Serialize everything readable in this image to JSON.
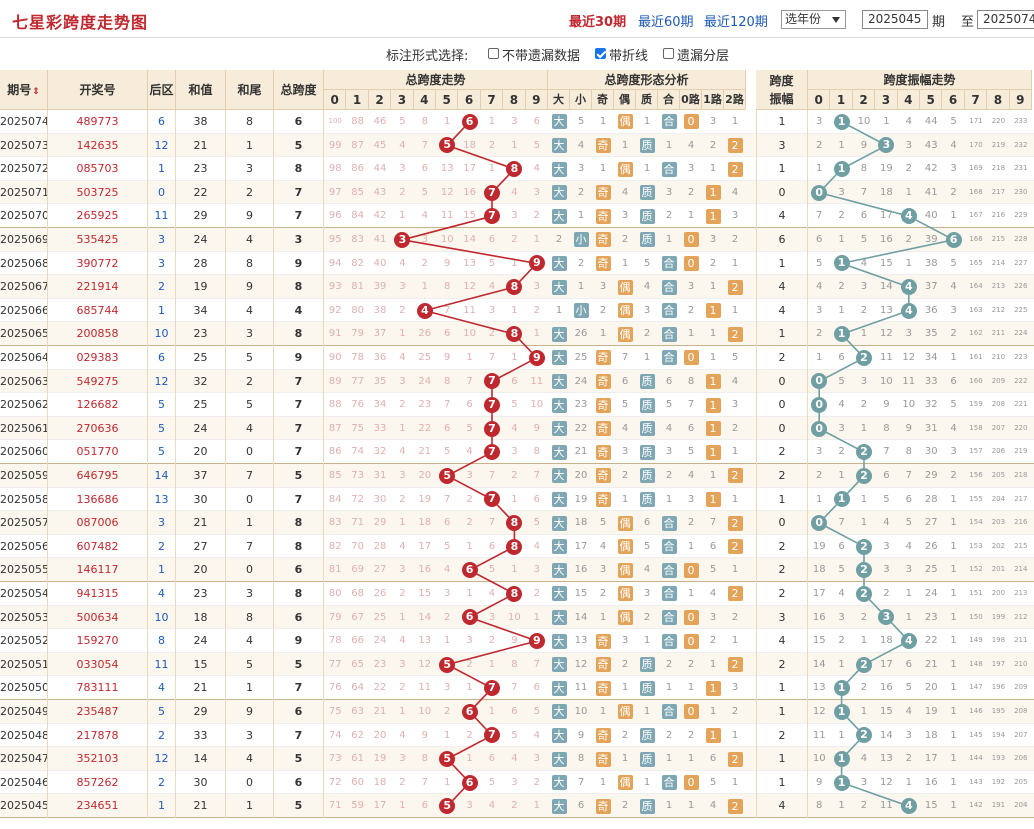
{
  "header": {
    "title": "七星彩跨度走势图",
    "nav": [
      "最近30期",
      "最近60期",
      "最近120期"
    ],
    "year_select": "选年份",
    "from_issue": "2025045",
    "period_label": "期",
    "to_label": "至",
    "to_issue": "2025074"
  },
  "options": {
    "label": "标注形式选择:",
    "items": [
      {
        "label": "不带遗漏数据",
        "checked": false
      },
      {
        "label": "带折线",
        "checked": true
      },
      {
        "label": "遗漏分层",
        "checked": false
      }
    ]
  },
  "columns": {
    "issue": "期号",
    "draw": "开奖号",
    "back": "后区",
    "sum": "和值",
    "tail": "和尾",
    "span": "总跨度",
    "span_trend": "总跨度走势",
    "form": "总跨度形态分析",
    "amp": "跨度振幅",
    "amp_trend": "跨度振幅走势",
    "digits": [
      "0",
      "1",
      "2",
      "3",
      "4",
      "5",
      "6",
      "7",
      "8",
      "9"
    ],
    "form_sub": [
      "大",
      "小",
      "奇",
      "偶",
      "质",
      "合",
      "0路",
      "1路",
      "2路"
    ],
    "sort_icon": "sort-arrows-icon"
  },
  "colors": {
    "header_bg": "#f7ecd9",
    "red_ball": "#c0282f",
    "teal_ball": "#6f9fa3",
    "big": "#7ea7b3",
    "odd": "#e3a45a",
    "prime": "#7ea7b3",
    "route": "#e3a45a"
  },
  "rows": [
    {
      "issue": "2025074",
      "draw": "489773",
      "back": "6",
      "sum": "38",
      "tail": "8",
      "span": "6",
      "amp": "1",
      "form": [
        "大",
        "5",
        "1",
        "偶",
        "1",
        "合",
        "0",
        "3",
        "1"
      ],
      "miss": [
        "100",
        "88",
        "46",
        "5",
        "8",
        "1",
        "",
        "1",
        "3",
        "6"
      ],
      "amiss": [
        "3",
        "",
        "10",
        "1",
        "4",
        "44",
        "5",
        "171",
        "220",
        "233"
      ]
    },
    {
      "issue": "2025073",
      "draw": "142635",
      "back": "12",
      "sum": "21",
      "tail": "1",
      "span": "5",
      "amp": "3",
      "form": [
        "大",
        "4",
        "奇",
        "1",
        "质",
        "1",
        "4",
        "2",
        "2"
      ],
      "miss": [
        "99",
        "87",
        "45",
        "4",
        "7",
        "",
        "18",
        "2",
        "1",
        "5"
      ],
      "amiss": [
        "2",
        "1",
        "9",
        "",
        "3",
        "43",
        "4",
        "170",
        "219",
        "232"
      ]
    },
    {
      "issue": "2025072",
      "draw": "085703",
      "back": "1",
      "sum": "23",
      "tail": "3",
      "span": "8",
      "amp": "1",
      "form": [
        "大",
        "3",
        "1",
        "偶",
        "1",
        "合",
        "3",
        "1",
        "2"
      ],
      "miss": [
        "98",
        "86",
        "44",
        "3",
        "6",
        "13",
        "17",
        "1",
        "",
        "4"
      ],
      "amiss": [
        "1",
        "",
        "8",
        "19",
        "2",
        "42",
        "3",
        "169",
        "218",
        "231"
      ]
    },
    {
      "issue": "2025071",
      "draw": "503725",
      "back": "0",
      "sum": "22",
      "tail": "2",
      "span": "7",
      "amp": "0",
      "form": [
        "大",
        "2",
        "奇",
        "4",
        "质",
        "3",
        "2",
        "1",
        "4"
      ],
      "miss": [
        "97",
        "85",
        "43",
        "2",
        "5",
        "12",
        "16",
        "",
        "4",
        "3"
      ],
      "amiss": [
        "",
        "3",
        "7",
        "18",
        "1",
        "41",
        "2",
        "168",
        "217",
        "230"
      ]
    },
    {
      "issue": "2025070",
      "draw": "265925",
      "back": "11",
      "sum": "29",
      "tail": "9",
      "span": "7",
      "amp": "4",
      "form": [
        "大",
        "1",
        "奇",
        "3",
        "质",
        "2",
        "1",
        "1",
        "3"
      ],
      "miss": [
        "96",
        "84",
        "42",
        "1",
        "4",
        "11",
        "15",
        "",
        "3",
        "2"
      ],
      "amiss": [
        "7",
        "2",
        "6",
        "17",
        "",
        "40",
        "1",
        "167",
        "216",
        "229"
      ]
    },
    {
      "issue": "2025069",
      "draw": "535425",
      "back": "3",
      "sum": "24",
      "tail": "4",
      "span": "3",
      "amp": "6",
      "form": [
        "2",
        "小",
        "奇",
        "2",
        "质",
        "1",
        "0",
        "3",
        "2"
      ],
      "miss": [
        "95",
        "83",
        "41",
        "",
        "3",
        "10",
        "14",
        "6",
        "2",
        "1"
      ],
      "amiss": [
        "6",
        "1",
        "5",
        "16",
        "2",
        "39",
        "",
        "166",
        "215",
        "228"
      ]
    },
    {
      "issue": "2025068",
      "draw": "390772",
      "back": "3",
      "sum": "28",
      "tail": "8",
      "span": "9",
      "amp": "1",
      "form": [
        "大",
        "2",
        "奇",
        "1",
        "5",
        "合",
        "0",
        "2",
        "1"
      ],
      "miss": [
        "94",
        "82",
        "40",
        "4",
        "2",
        "9",
        "13",
        "5",
        "1",
        ""
      ],
      "amiss": [
        "5",
        "",
        "4",
        "15",
        "1",
        "38",
        "5",
        "165",
        "214",
        "227"
      ]
    },
    {
      "issue": "2025067",
      "draw": "221914",
      "back": "2",
      "sum": "19",
      "tail": "9",
      "span": "8",
      "amp": "4",
      "form": [
        "大",
        "1",
        "3",
        "偶",
        "4",
        "合",
        "3",
        "1",
        "2"
      ],
      "miss": [
        "93",
        "81",
        "39",
        "3",
        "1",
        "8",
        "12",
        "4",
        "",
        "3"
      ],
      "amiss": [
        "4",
        "2",
        "3",
        "14",
        "",
        "37",
        "4",
        "164",
        "213",
        "226"
      ]
    },
    {
      "issue": "2025066",
      "draw": "685744",
      "back": "1",
      "sum": "34",
      "tail": "4",
      "span": "4",
      "amp": "4",
      "form": [
        "1",
        "小",
        "2",
        "偶",
        "3",
        "合",
        "2",
        "1",
        "1"
      ],
      "miss": [
        "92",
        "80",
        "38",
        "2",
        "",
        "7",
        "11",
        "3",
        "1",
        "2"
      ],
      "amiss": [
        "3",
        "1",
        "2",
        "13",
        "",
        "36",
        "3",
        "163",
        "212",
        "225"
      ]
    },
    {
      "issue": "2025065",
      "draw": "200858",
      "back": "10",
      "sum": "23",
      "tail": "3",
      "span": "8",
      "amp": "1",
      "form": [
        "大",
        "26",
        "1",
        "偶",
        "2",
        "合",
        "1",
        "1",
        "2"
      ],
      "miss": [
        "91",
        "79",
        "37",
        "1",
        "26",
        "6",
        "10",
        "2",
        "",
        "1"
      ],
      "amiss": [
        "2",
        "",
        "1",
        "12",
        "3",
        "35",
        "2",
        "162",
        "211",
        "224"
      ]
    },
    {
      "issue": "2025064",
      "draw": "029383",
      "back": "6",
      "sum": "25",
      "tail": "5",
      "span": "9",
      "amp": "2",
      "form": [
        "大",
        "25",
        "奇",
        "7",
        "1",
        "合",
        "0",
        "1",
        "5"
      ],
      "miss": [
        "90",
        "78",
        "36",
        "4",
        "25",
        "9",
        "1",
        "7",
        "1",
        ""
      ],
      "amiss": [
        "1",
        "6",
        "",
        "11",
        "12",
        "34",
        "1",
        "161",
        "210",
        "223"
      ]
    },
    {
      "issue": "2025063",
      "draw": "549275",
      "back": "12",
      "sum": "32",
      "tail": "2",
      "span": "7",
      "amp": "0",
      "form": [
        "大",
        "24",
        "奇",
        "6",
        "质",
        "6",
        "8",
        "1",
        "4"
      ],
      "miss": [
        "89",
        "77",
        "35",
        "3",
        "24",
        "8",
        "7",
        "",
        "6",
        "11"
      ],
      "amiss": [
        "",
        "5",
        "3",
        "10",
        "11",
        "33",
        "6",
        "160",
        "209",
        "222"
      ]
    },
    {
      "issue": "2025062",
      "draw": "126682",
      "back": "5",
      "sum": "25",
      "tail": "5",
      "span": "7",
      "amp": "0",
      "form": [
        "大",
        "23",
        "奇",
        "5",
        "质",
        "5",
        "7",
        "1",
        "3"
      ],
      "miss": [
        "88",
        "76",
        "34",
        "2",
        "23",
        "7",
        "6",
        "",
        "5",
        "10"
      ],
      "amiss": [
        "",
        "4",
        "2",
        "9",
        "10",
        "32",
        "5",
        "159",
        "208",
        "221"
      ]
    },
    {
      "issue": "2025061",
      "draw": "270636",
      "back": "5",
      "sum": "24",
      "tail": "4",
      "span": "7",
      "amp": "0",
      "form": [
        "大",
        "22",
        "奇",
        "4",
        "质",
        "4",
        "6",
        "1",
        "2"
      ],
      "miss": [
        "87",
        "75",
        "33",
        "1",
        "22",
        "6",
        "5",
        "",
        "4",
        "9"
      ],
      "amiss": [
        "",
        "3",
        "1",
        "8",
        "9",
        "31",
        "4",
        "158",
        "207",
        "220"
      ]
    },
    {
      "issue": "2025060",
      "draw": "051770",
      "back": "5",
      "sum": "20",
      "tail": "0",
      "span": "7",
      "amp": "2",
      "form": [
        "大",
        "21",
        "奇",
        "3",
        "质",
        "3",
        "5",
        "1",
        "1"
      ],
      "miss": [
        "86",
        "74",
        "32",
        "4",
        "21",
        "5",
        "4",
        "",
        "3",
        "8"
      ],
      "amiss": [
        "3",
        "2",
        "",
        "7",
        "8",
        "30",
        "3",
        "157",
        "206",
        "219"
      ]
    },
    {
      "issue": "2025059",
      "draw": "646795",
      "back": "14",
      "sum": "37",
      "tail": "7",
      "span": "5",
      "amp": "2",
      "form": [
        "大",
        "20",
        "奇",
        "2",
        "质",
        "2",
        "4",
        "1",
        "2"
      ],
      "miss": [
        "85",
        "73",
        "31",
        "3",
        "20",
        "",
        "3",
        "7",
        "2",
        "7"
      ],
      "amiss": [
        "2",
        "1",
        "",
        "6",
        "7",
        "29",
        "2",
        "156",
        "205",
        "218"
      ]
    },
    {
      "issue": "2025058",
      "draw": "136686",
      "back": "13",
      "sum": "30",
      "tail": "0",
      "span": "7",
      "amp": "1",
      "form": [
        "大",
        "19",
        "奇",
        "1",
        "质",
        "1",
        "3",
        "1",
        "1"
      ],
      "miss": [
        "84",
        "72",
        "30",
        "2",
        "19",
        "7",
        "2",
        "",
        "1",
        "6"
      ],
      "amiss": [
        "1",
        "",
        "1",
        "5",
        "6",
        "28",
        "1",
        "155",
        "204",
        "217"
      ]
    },
    {
      "issue": "2025057",
      "draw": "087006",
      "back": "3",
      "sum": "21",
      "tail": "1",
      "span": "8",
      "amp": "0",
      "form": [
        "大",
        "18",
        "5",
        "偶",
        "6",
        "合",
        "2",
        "7",
        "2"
      ],
      "miss": [
        "83",
        "71",
        "29",
        "1",
        "18",
        "6",
        "2",
        "7",
        "",
        "5"
      ],
      "amiss": [
        "",
        "7",
        "1",
        "4",
        "5",
        "27",
        "1",
        "154",
        "203",
        "216"
      ]
    },
    {
      "issue": "2025056",
      "draw": "607482",
      "back": "2",
      "sum": "27",
      "tail": "7",
      "span": "8",
      "amp": "2",
      "form": [
        "大",
        "17",
        "4",
        "偶",
        "5",
        "合",
        "1",
        "6",
        "2"
      ],
      "miss": [
        "82",
        "70",
        "28",
        "4",
        "17",
        "5",
        "1",
        "6",
        "",
        "4"
      ],
      "amiss": [
        "19",
        "6",
        "",
        "3",
        "4",
        "26",
        "1",
        "153",
        "202",
        "215"
      ]
    },
    {
      "issue": "2025055",
      "draw": "146117",
      "back": "1",
      "sum": "20",
      "tail": "0",
      "span": "6",
      "amp": "2",
      "form": [
        "大",
        "16",
        "3",
        "偶",
        "4",
        "合",
        "0",
        "5",
        "1"
      ],
      "miss": [
        "81",
        "69",
        "27",
        "3",
        "16",
        "4",
        "",
        "5",
        "1",
        "3"
      ],
      "amiss": [
        "18",
        "5",
        "",
        "3",
        "3",
        "25",
        "1",
        "152",
        "201",
        "214"
      ]
    },
    {
      "issue": "2025054",
      "draw": "941315",
      "back": "4",
      "sum": "23",
      "tail": "3",
      "span": "8",
      "amp": "2",
      "form": [
        "大",
        "15",
        "2",
        "偶",
        "3",
        "合",
        "1",
        "4",
        "2"
      ],
      "miss": [
        "80",
        "68",
        "26",
        "2",
        "15",
        "3",
        "1",
        "4",
        "",
        "2"
      ],
      "amiss": [
        "17",
        "4",
        "",
        "2",
        "1",
        "24",
        "1",
        "151",
        "200",
        "213"
      ]
    },
    {
      "issue": "2025053",
      "draw": "500634",
      "back": "10",
      "sum": "18",
      "tail": "8",
      "span": "6",
      "amp": "3",
      "form": [
        "大",
        "14",
        "1",
        "偶",
        "2",
        "合",
        "0",
        "3",
        "2"
      ],
      "miss": [
        "79",
        "67",
        "25",
        "1",
        "14",
        "2",
        "",
        "3",
        "10",
        "1"
      ],
      "amiss": [
        "16",
        "3",
        "2",
        "",
        "1",
        "23",
        "1",
        "150",
        "199",
        "212"
      ]
    },
    {
      "issue": "2025052",
      "draw": "159270",
      "back": "8",
      "sum": "24",
      "tail": "4",
      "span": "9",
      "amp": "4",
      "form": [
        "大",
        "13",
        "奇",
        "3",
        "1",
        "合",
        "0",
        "2",
        "1"
      ],
      "miss": [
        "78",
        "66",
        "24",
        "4",
        "13",
        "1",
        "3",
        "2",
        "9",
        ""
      ],
      "amiss": [
        "15",
        "2",
        "1",
        "18",
        "",
        "22",
        "1",
        "149",
        "198",
        "211"
      ]
    },
    {
      "issue": "2025051",
      "draw": "033054",
      "back": "11",
      "sum": "15",
      "tail": "5",
      "span": "5",
      "amp": "2",
      "form": [
        "大",
        "12",
        "奇",
        "2",
        "质",
        "2",
        "2",
        "1",
        "2"
      ],
      "miss": [
        "77",
        "65",
        "23",
        "3",
        "12",
        "",
        "2",
        "1",
        "8",
        "7"
      ],
      "amiss": [
        "14",
        "1",
        "",
        "17",
        "6",
        "21",
        "1",
        "148",
        "197",
        "210"
      ]
    },
    {
      "issue": "2025050",
      "draw": "783111",
      "back": "4",
      "sum": "21",
      "tail": "1",
      "span": "7",
      "amp": "1",
      "form": [
        "大",
        "11",
        "奇",
        "1",
        "质",
        "1",
        "1",
        "1",
        "3"
      ],
      "miss": [
        "76",
        "64",
        "22",
        "2",
        "11",
        "3",
        "1",
        "",
        "7",
        "6"
      ],
      "amiss": [
        "13",
        "",
        "2",
        "16",
        "5",
        "20",
        "1",
        "147",
        "196",
        "209"
      ]
    },
    {
      "issue": "2025049",
      "draw": "235487",
      "back": "5",
      "sum": "29",
      "tail": "9",
      "span": "6",
      "amp": "1",
      "form": [
        "大",
        "10",
        "1",
        "偶",
        "1",
        "合",
        "0",
        "1",
        "2"
      ],
      "miss": [
        "75",
        "63",
        "21",
        "1",
        "10",
        "2",
        "",
        "1",
        "6",
        "5"
      ],
      "amiss": [
        "12",
        "",
        "1",
        "15",
        "4",
        "19",
        "1",
        "146",
        "195",
        "208"
      ]
    },
    {
      "issue": "2025048",
      "draw": "217878",
      "back": "2",
      "sum": "33",
      "tail": "3",
      "span": "7",
      "amp": "2",
      "form": [
        "大",
        "9",
        "奇",
        "2",
        "质",
        "2",
        "2",
        "1",
        "1"
      ],
      "miss": [
        "74",
        "62",
        "20",
        "4",
        "9",
        "1",
        "2",
        "",
        "5",
        "4"
      ],
      "amiss": [
        "11",
        "1",
        "",
        "14",
        "3",
        "18",
        "1",
        "145",
        "194",
        "207"
      ]
    },
    {
      "issue": "2025047",
      "draw": "352103",
      "back": "12",
      "sum": "14",
      "tail": "4",
      "span": "5",
      "amp": "1",
      "form": [
        "大",
        "8",
        "奇",
        "1",
        "质",
        "1",
        "1",
        "6",
        "2"
      ],
      "miss": [
        "73",
        "61",
        "19",
        "3",
        "8",
        "",
        "1",
        "6",
        "4",
        "3"
      ],
      "amiss": [
        "10",
        "",
        "4",
        "13",
        "2",
        "17",
        "1",
        "144",
        "193",
        "206"
      ]
    },
    {
      "issue": "2025046",
      "draw": "857262",
      "back": "2",
      "sum": "30",
      "tail": "0",
      "span": "6",
      "amp": "1",
      "form": [
        "大",
        "7",
        "1",
        "偶",
        "1",
        "合",
        "0",
        "5",
        "1"
      ],
      "miss": [
        "72",
        "60",
        "18",
        "2",
        "7",
        "1",
        "",
        "5",
        "3",
        "2"
      ],
      "amiss": [
        "9",
        "",
        "3",
        "12",
        "1",
        "16",
        "1",
        "143",
        "192",
        "205"
      ]
    },
    {
      "issue": "2025045",
      "draw": "234651",
      "back": "1",
      "sum": "21",
      "tail": "1",
      "span": "5",
      "amp": "4",
      "form": [
        "大",
        "6",
        "奇",
        "2",
        "质",
        "1",
        "1",
        "4",
        "2"
      ],
      "miss": [
        "71",
        "59",
        "17",
        "1",
        "6",
        "",
        "3",
        "4",
        "2",
        "1"
      ],
      "amiss": [
        "8",
        "1",
        "2",
        "11",
        "",
        "15",
        "1",
        "142",
        "191",
        "204"
      ]
    }
  ]
}
